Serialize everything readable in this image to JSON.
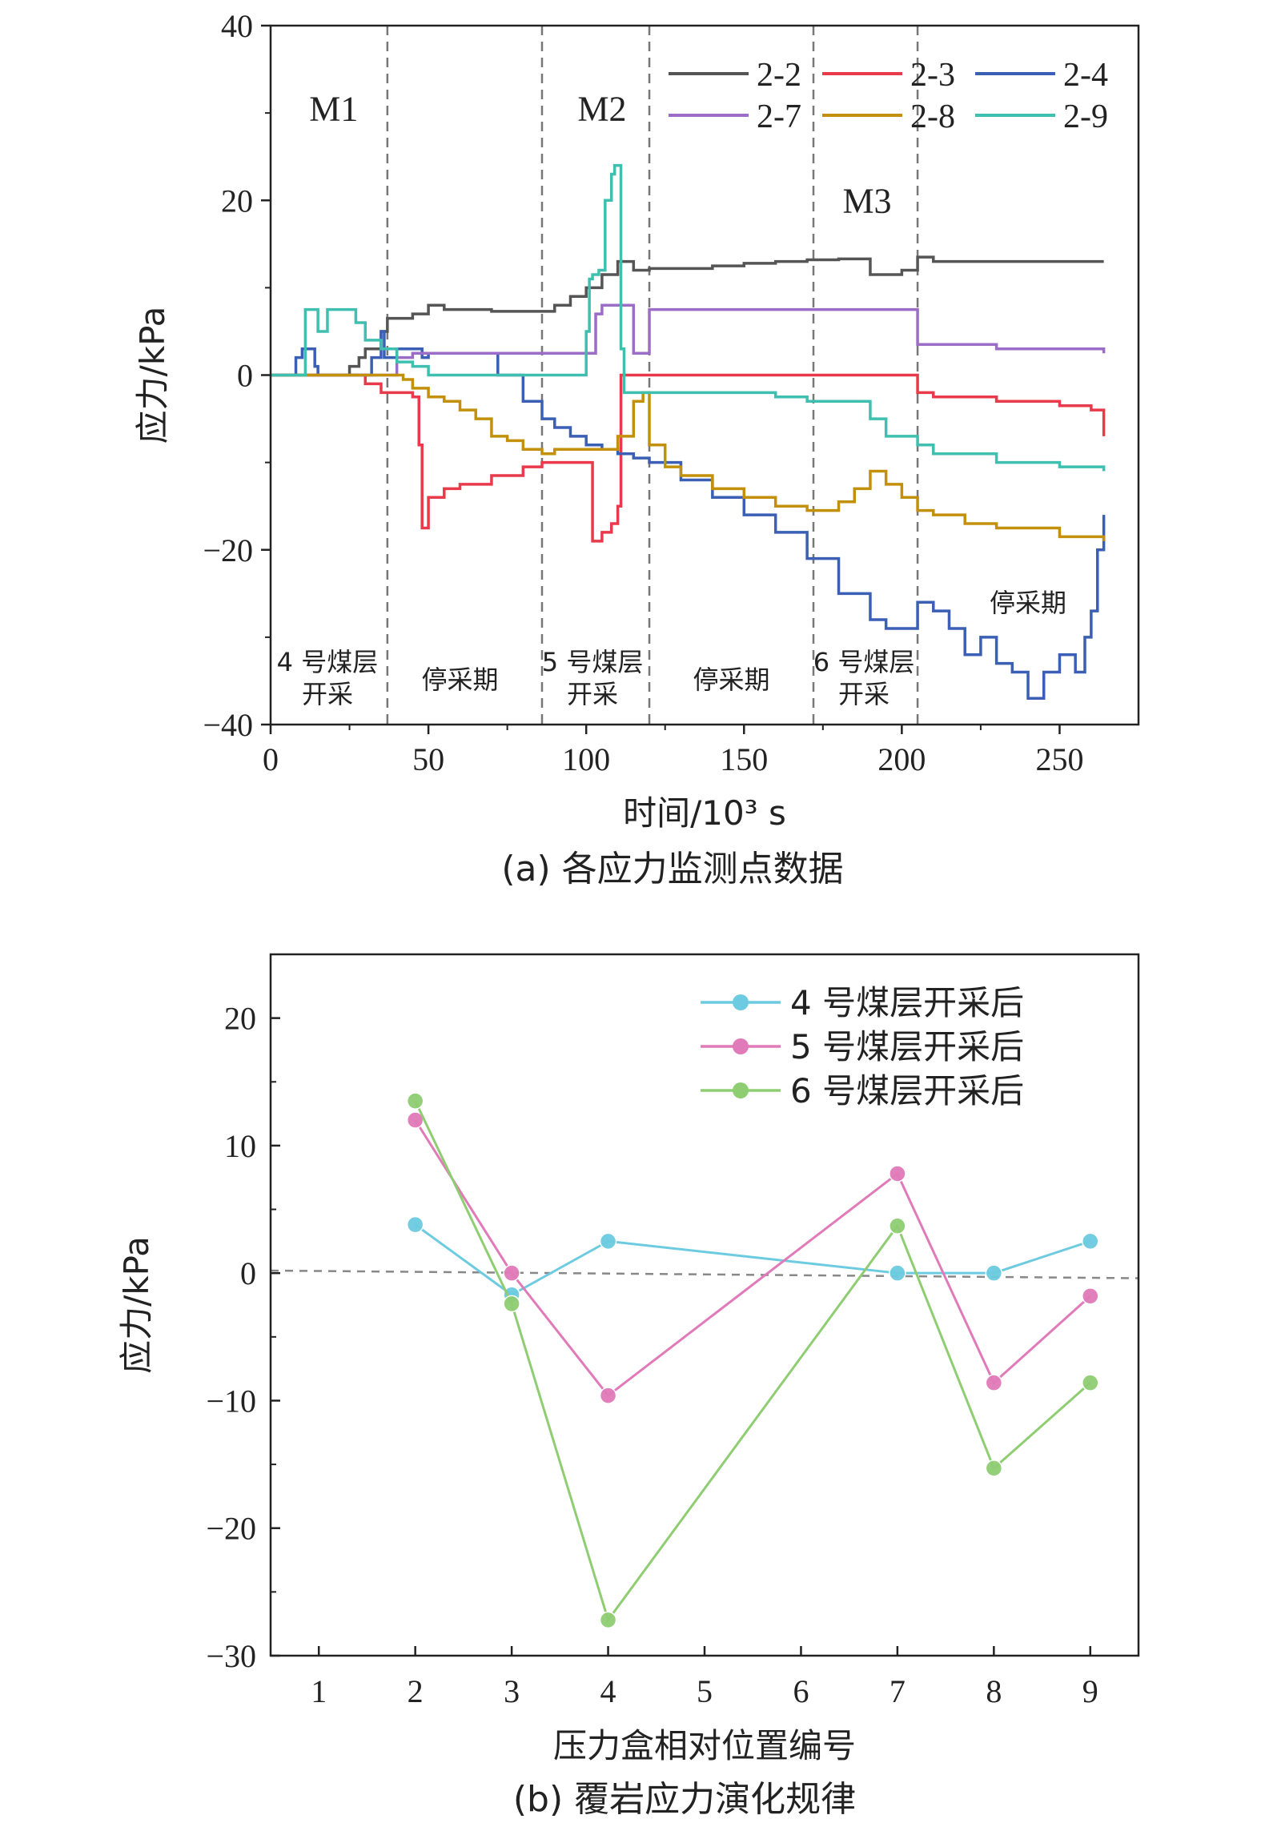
{
  "chart_data": [
    {
      "type": "line",
      "title": "",
      "caption": "(a) 各应力监测点数据",
      "xlabel": "时间/10³ s",
      "ylabel": "应力/kPa",
      "xlim": [
        0,
        275
      ],
      "ylim": [
        -40,
        40
      ],
      "xticks": [
        "0",
        "50",
        "100",
        "150",
        "200",
        "250"
      ],
      "xtick_values": [
        0,
        50,
        100,
        150,
        200,
        250
      ],
      "yticks": [
        "−40",
        "−20",
        "0",
        "20",
        "40"
      ],
      "ytick_values": [
        -40,
        -20,
        0,
        20,
        40
      ],
      "phase_boundaries": [
        37,
        86,
        120,
        172,
        205
      ],
      "phase_labels_top": [
        {
          "text": "M1",
          "x": 20,
          "y": 30.5
        },
        {
          "text": "M2",
          "x": 105,
          "y": 30.5
        },
        {
          "text": "M3",
          "x": 189,
          "y": 20
        }
      ],
      "phase_labels_bottom": [
        {
          "lines": [
            "4 号煤层",
            "开采"
          ],
          "x": 18
        },
        {
          "lines": [
            "停采期"
          ],
          "x": 60
        },
        {
          "lines": [
            "5 号煤层",
            "开采"
          ],
          "x": 102
        },
        {
          "lines": [
            "停采期"
          ],
          "x": 146
        },
        {
          "lines": [
            "6 号煤层",
            "开采"
          ],
          "x": 188
        }
      ],
      "extra_label": {
        "text": "停采期",
        "x": 240,
        "y": -26
      },
      "legend_position": "top-right",
      "series": [
        {
          "name": "2-2",
          "color": "#555555",
          "x": [
            0,
            18,
            22,
            25,
            28,
            30,
            35,
            37,
            45,
            50,
            55,
            60,
            70,
            80,
            86,
            90,
            95,
            100,
            105,
            110,
            115,
            120,
            140,
            150,
            160,
            170,
            180,
            185,
            190,
            195,
            200,
            205,
            210,
            230,
            250,
            264
          ],
          "y": [
            0,
            0,
            0,
            1,
            2,
            3,
            5,
            6.5,
            7,
            8,
            7.5,
            7.5,
            7.3,
            7.3,
            7.3,
            8,
            9,
            10,
            11.5,
            13,
            12,
            12.2,
            12.5,
            12.8,
            13,
            13.2,
            13.3,
            13.3,
            11.5,
            11.5,
            12,
            13.5,
            13,
            13,
            13,
            13
          ]
        },
        {
          "name": "2-3",
          "color": "#e83a4a",
          "x": [
            0,
            27,
            30,
            35,
            38,
            45,
            47,
            48,
            50,
            55,
            60,
            70,
            80,
            86,
            90,
            95,
            100,
            101,
            102,
            105,
            108,
            110,
            111,
            115,
            130,
            150,
            170,
            190,
            203,
            205,
            210,
            230,
            250,
            260,
            264
          ],
          "y": [
            0,
            0,
            -1,
            -2,
            -2,
            -2.5,
            -8,
            -17.5,
            -14,
            -13,
            -12.5,
            -11.5,
            -10.5,
            -10,
            -10,
            -10,
            -10,
            -10,
            -19,
            -18,
            -17,
            -15,
            0,
            0,
            0,
            0,
            0,
            0,
            0,
            -2,
            -2.5,
            -3,
            -3.5,
            -4,
            -7
          ]
        },
        {
          "name": "2-4",
          "color": "#3a5fb5",
          "x": [
            0,
            5,
            8,
            10,
            12,
            14,
            15,
            20,
            25,
            30,
            32,
            35,
            36,
            38,
            40,
            45,
            48,
            50,
            60,
            70,
            72,
            80,
            86,
            90,
            95,
            100,
            105,
            110,
            115,
            120,
            130,
            140,
            150,
            160,
            170,
            180,
            190,
            195,
            200,
            205,
            210,
            215,
            220,
            225,
            230,
            235,
            240,
            245,
            250,
            255,
            258,
            260,
            262,
            264
          ],
          "y": [
            0,
            0,
            2,
            3,
            3,
            1,
            0,
            0,
            0,
            0,
            2,
            5,
            2,
            2,
            3,
            3,
            2,
            2.5,
            2.5,
            2.5,
            0,
            -3,
            -5,
            -6,
            -7,
            -8,
            -8.5,
            -9,
            -9.5,
            -10,
            -12,
            -14,
            -16,
            -18,
            -21,
            -25,
            -28,
            -29,
            -29,
            -26,
            -27,
            -29,
            -32,
            -30,
            -33,
            -34,
            -37,
            -34,
            -32,
            -34,
            -30,
            -27,
            -20,
            -16
          ]
        },
        {
          "name": "2-7",
          "color": "#9b6dc6",
          "x": [
            0,
            37,
            40,
            45,
            50,
            60,
            80,
            86,
            90,
            95,
            100,
            103,
            105,
            110,
            115,
            118,
            120,
            140,
            160,
            180,
            200,
            204,
            205,
            210,
            230,
            250,
            264
          ],
          "y": [
            0,
            0,
            2,
            2.5,
            2.5,
            2.5,
            2.5,
            2.5,
            2.5,
            2.5,
            2.5,
            7,
            8,
            8,
            2.5,
            2.5,
            7.5,
            7.5,
            7.5,
            7.5,
            7.5,
            7.5,
            3.5,
            3.5,
            3,
            3,
            2.5
          ]
        },
        {
          "name": "2-8",
          "color": "#c2900a",
          "x": [
            0,
            37,
            42,
            45,
            50,
            55,
            60,
            65,
            70,
            75,
            80,
            86,
            90,
            95,
            100,
            105,
            110,
            115,
            118,
            120,
            125,
            130,
            140,
            150,
            160,
            170,
            175,
            180,
            185,
            190,
            195,
            200,
            205,
            210,
            220,
            230,
            250,
            264
          ],
          "y": [
            0,
            0,
            -0.5,
            -1.5,
            -2.5,
            -3,
            -4,
            -5,
            -7,
            -7.5,
            -8.5,
            -9,
            -8.5,
            -8.5,
            -8.5,
            -8.5,
            -7,
            -3,
            -2,
            -8,
            -10.5,
            -11.5,
            -13,
            -14,
            -15,
            -15.5,
            -15.5,
            -14.5,
            -13,
            -11,
            -12.5,
            -14,
            -15.5,
            -16,
            -17,
            -17.5,
            -18.5,
            -19
          ]
        },
        {
          "name": "2-9",
          "color": "#3fbfaf",
          "x": [
            0,
            10,
            11,
            15,
            18,
            20,
            25,
            27,
            30,
            35,
            40,
            45,
            50,
            60,
            80,
            86,
            95,
            99,
            100,
            101,
            102,
            104,
            106,
            108,
            109,
            110,
            111,
            112,
            115,
            120,
            140,
            160,
            170,
            180,
            190,
            195,
            205,
            210,
            230,
            250,
            264
          ],
          "y": [
            0,
            0,
            7.5,
            5,
            7.5,
            7.5,
            7.5,
            6,
            4,
            3,
            1.5,
            1,
            0,
            0,
            0,
            0,
            0,
            0,
            5,
            11,
            11.5,
            12,
            20,
            23,
            24,
            24,
            3,
            -2,
            -2,
            -2,
            -2,
            -2.5,
            -3,
            -3,
            -5,
            -7,
            -8,
            -9,
            -10,
            -10.5,
            -11
          ]
        }
      ]
    },
    {
      "type": "line",
      "title": "",
      "caption": "(b) 覆岩应力演化规律",
      "xlabel": "压力盒相对位置编号",
      "ylabel": "应力/kPa",
      "xlim": [
        0.5,
        9.5
      ],
      "ylim": [
        -30,
        25
      ],
      "xticks": [
        "1",
        "2",
        "3",
        "4",
        "5",
        "6",
        "7",
        "8",
        "9"
      ],
      "xtick_values": [
        1,
        2,
        3,
        4,
        5,
        6,
        7,
        8,
        9
      ],
      "yticks": [
        "−30",
        "−20",
        "−10",
        "0",
        "10",
        "20"
      ],
      "ytick_values": [
        -30,
        -20,
        -10,
        0,
        10,
        20
      ],
      "reference_line": {
        "y_start": 0.2,
        "y_end": -0.4
      },
      "legend_position": "top-right",
      "series": [
        {
          "name": "4 号煤层开采后",
          "color": "#6ccbe0",
          "x": [
            2,
            3,
            4,
            7,
            8,
            9
          ],
          "y": [
            3.8,
            -1.7,
            2.5,
            0,
            0,
            2.5
          ]
        },
        {
          "name": "5 号煤层开采后",
          "color": "#e07ab8",
          "x": [
            2,
            3,
            4,
            7,
            8,
            9
          ],
          "y": [
            12,
            0,
            -9.6,
            7.8,
            -8.6,
            -1.8
          ]
        },
        {
          "name": "6 号煤层开采后",
          "color": "#8fcd72",
          "x": [
            2,
            3,
            4,
            7,
            8,
            9
          ],
          "y": [
            13.5,
            -2.4,
            -27.2,
            3.7,
            -15.3,
            -8.6
          ]
        }
      ]
    }
  ]
}
